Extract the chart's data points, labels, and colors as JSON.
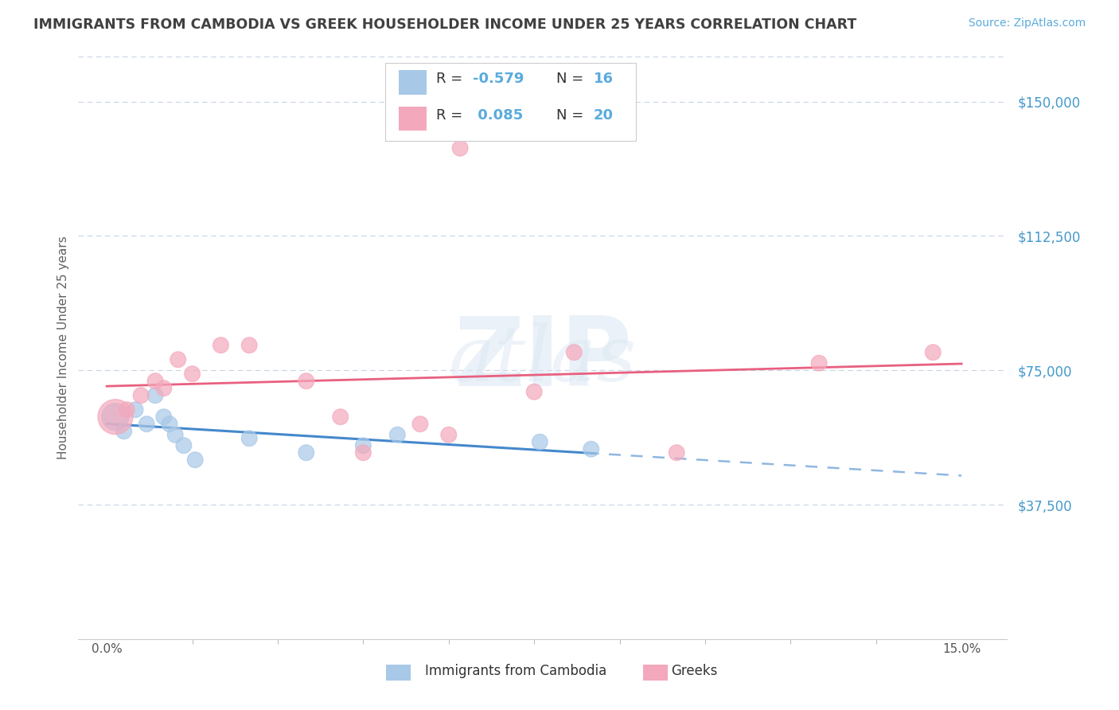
{
  "title": "IMMIGRANTS FROM CAMBODIA VS GREEK HOUSEHOLDER INCOME UNDER 25 YEARS CORRELATION CHART",
  "source": "Source: ZipAtlas.com",
  "ylabel": "Householder Income Under 25 years",
  "xlim": [
    0.0,
    15.0
  ],
  "ylim": [
    0,
    162500
  ],
  "yticks": [
    0,
    37500,
    75000,
    112500,
    150000
  ],
  "ytick_labels": [
    "",
    "$37,500",
    "$75,000",
    "$112,500",
    "$150,000"
  ],
  "r1": -0.579,
  "n1": 16,
  "r2": 0.085,
  "n2": 20,
  "color_blue": "#a8c8e8",
  "color_pink": "#f4a8bc",
  "line_color_blue": "#4488cc",
  "line_color_pink": "#e86080",
  "legend1_label": "Immigrants from Cambodia",
  "legend2_label": "Greeks",
  "blue_scatter_x": [
    0.15,
    0.3,
    0.5,
    0.7,
    0.85,
    1.0,
    1.1,
    1.2,
    1.35,
    1.55,
    2.5,
    3.5,
    4.5,
    5.1,
    7.6,
    8.5
  ],
  "blue_scatter_y": [
    62000,
    58000,
    64000,
    60000,
    68000,
    62000,
    60000,
    57000,
    54000,
    50000,
    56000,
    52000,
    54000,
    57000,
    55000,
    53000
  ],
  "blue_scatter_sizes": [
    600,
    200,
    200,
    200,
    200,
    200,
    200,
    200,
    200,
    200,
    200,
    200,
    200,
    200,
    200,
    200
  ],
  "pink_scatter_x": [
    0.15,
    0.35,
    0.6,
    0.85,
    1.0,
    1.25,
    1.5,
    2.0,
    2.5,
    3.5,
    4.1,
    4.5,
    5.5,
    6.0,
    6.2,
    7.5,
    8.2,
    10.0,
    12.5,
    14.5
  ],
  "pink_scatter_y": [
    62000,
    64000,
    68000,
    72000,
    70000,
    78000,
    74000,
    82000,
    82000,
    72000,
    62000,
    52000,
    60000,
    57000,
    137000,
    69000,
    80000,
    52000,
    77000,
    80000
  ],
  "pink_scatter_sizes": [
    1000,
    200,
    200,
    200,
    200,
    200,
    200,
    200,
    200,
    200,
    200,
    200,
    200,
    200,
    200,
    200,
    200,
    200,
    200,
    200
  ],
  "background_color": "#ffffff",
  "grid_color": "#c8d4e4",
  "title_color": "#404040",
  "source_color": "#5aabdd",
  "axis_color": "#4499cc"
}
